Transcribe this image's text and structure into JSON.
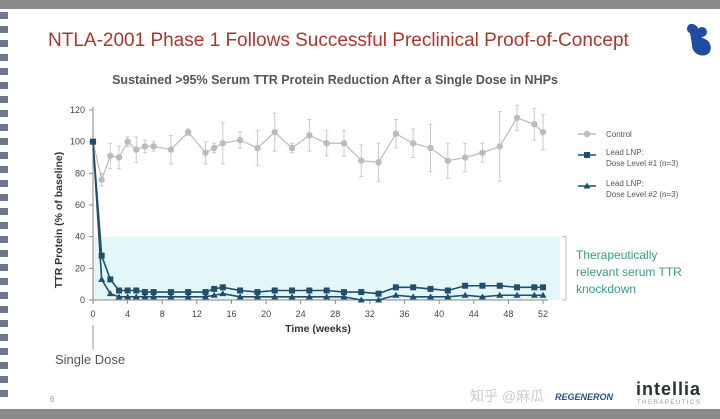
{
  "slide": {
    "title": "NTLA-2001 Phase 1 Follows Successful Preclinical Proof-of-Concept",
    "page_number": "6",
    "watermark": "知乎 @麻瓜",
    "logos": {
      "left": "REGENERON",
      "right": "intellia",
      "right_sub": "THERAPEUTICS"
    }
  },
  "chart_data": {
    "type": "line",
    "title": "Sustained >95% Serum TTR Protein Reduction After a Single Dose in NHPs",
    "xlabel": "Time (weeks)",
    "ylabel": "TTR Protein (% of baseline)",
    "xlim": [
      0,
      52
    ],
    "ylim": [
      0,
      120
    ],
    "xticks": [
      0,
      4,
      8,
      12,
      16,
      20,
      24,
      28,
      32,
      36,
      40,
      44,
      48,
      52
    ],
    "yticks": [
      0,
      20,
      40,
      60,
      80,
      100,
      120
    ],
    "x": [
      0,
      1,
      2,
      3,
      4,
      5,
      6,
      7,
      9,
      11,
      13,
      14,
      15,
      17,
      19,
      21,
      23,
      25,
      27,
      29,
      31,
      33,
      35,
      37,
      39,
      41,
      43,
      45,
      47,
      49,
      51,
      52
    ],
    "series": [
      {
        "name": "Control",
        "color": "#b8bcbf",
        "marker": "circle",
        "values": [
          100,
          76,
          91,
          90,
          100,
          95,
          97,
          97,
          95,
          106,
          93,
          96,
          99,
          101,
          96,
          106,
          96,
          104,
          99,
          99,
          88,
          87,
          105,
          99,
          96,
          88,
          90,
          93,
          97,
          115,
          111,
          106
        ],
        "errors": [
          0,
          4,
          8,
          7,
          3,
          8,
          4,
          3,
          9,
          2,
          7,
          3,
          13,
          5,
          11,
          12,
          3,
          10,
          8,
          8,
          10,
          12,
          9,
          9,
          15,
          11,
          9,
          6,
          22,
          8,
          10,
          11
        ]
      },
      {
        "name": "Lead LNP: Dose Level #1 (n=3)",
        "legend_lines": [
          "Lead LNP:",
          "Dose Level #1 (n=3)"
        ],
        "color": "#1f4e6e",
        "marker": "square",
        "values": [
          100,
          28,
          13,
          6,
          6,
          6,
          5,
          5,
          5,
          5,
          5,
          7,
          8,
          6,
          5,
          6,
          6,
          6,
          6,
          5,
          5,
          4,
          8,
          8,
          7,
          6,
          9,
          9,
          9,
          8,
          8,
          8
        ]
      },
      {
        "name": "Lead LNP: Dose Level #2 (n=3)",
        "legend_lines": [
          "Lead LNP:",
          "Dose Level #2 (n=3)"
        ],
        "color": "#1f4e6e",
        "marker": "triangle",
        "values": [
          100,
          13,
          4,
          2,
          2,
          2,
          2,
          2,
          2,
          2,
          2,
          3,
          4,
          2,
          2,
          2,
          2,
          2,
          2,
          2,
          0,
          0,
          3,
          2,
          2,
          2,
          3,
          2,
          3,
          3,
          3,
          3
        ]
      }
    ],
    "band": {
      "from": 0,
      "to": 40,
      "color": "#e3f6f8"
    },
    "annotations": {
      "band_label": [
        "Therapeutically",
        "relevant serum TTR",
        "knockdown"
      ],
      "dose_label": "Single Dose"
    },
    "legend_position": "right"
  }
}
